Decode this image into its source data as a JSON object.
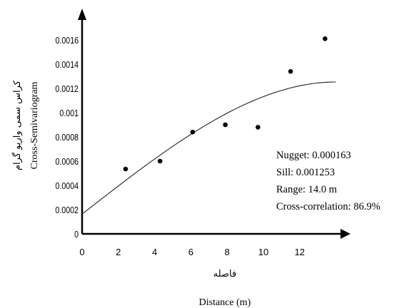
{
  "chart_data": {
    "type": "scatter",
    "xlabel_fa": "فاصله",
    "xlabel_en": "Distance (m)",
    "ylabel_fa": "کراس سمی واریو گرام",
    "ylabel_en": "Cross-Semivariogram",
    "xlim": [
      0,
      14
    ],
    "ylim": [
      0,
      0.0017
    ],
    "x_ticks": [
      0,
      2,
      4,
      6,
      8,
      10,
      12
    ],
    "x_tick_labels": [
      "0",
      "2",
      "4",
      "6",
      "8",
      "10",
      "12"
    ],
    "y_ticks": [
      0,
      0.0002,
      0.0004,
      0.0006,
      0.0008,
      0.001,
      0.0012,
      0.0014,
      0.0016
    ],
    "y_tick_labels": [
      "0",
      "0.0002",
      "0.0004",
      "0.0006",
      "0.0008",
      "0.001",
      "0.0012",
      "0.0014",
      "0.0016"
    ],
    "points": [
      {
        "x": 2.4,
        "y": 0.000535
      },
      {
        "x": 4.3,
        "y": 0.0006
      },
      {
        "x": 6.1,
        "y": 0.00084
      },
      {
        "x": 7.9,
        "y": 0.0009
      },
      {
        "x": 9.7,
        "y": 0.00088
      },
      {
        "x": 11.5,
        "y": 0.00134
      },
      {
        "x": 13.4,
        "y": 0.00161
      }
    ],
    "model": {
      "type": "spherical",
      "nugget": 0.000163,
      "sill": 0.001253,
      "range": 14.0
    },
    "annotations": [
      "Nugget: 0.000163",
      "Sill: 0.001253",
      "Range: 14.0 m",
      "Cross-correlation: 86.9%"
    ],
    "grid": false,
    "legend": "none"
  }
}
